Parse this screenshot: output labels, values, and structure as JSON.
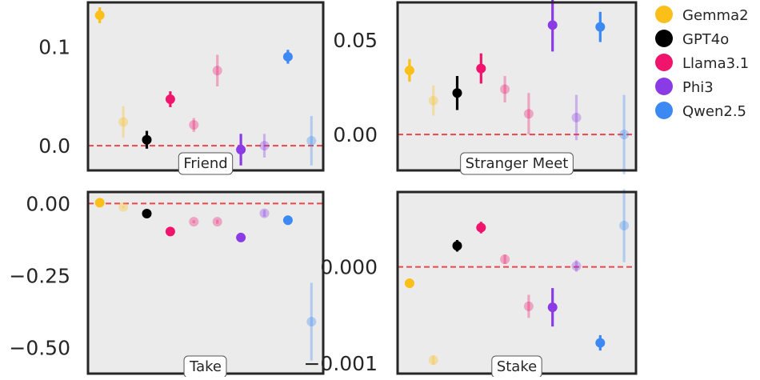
{
  "colors": {
    "background": "#ebebeb",
    "frame": "#262626",
    "zero_line": "#e8474c",
    "Gemma2": "#fbbf1a",
    "GPT4o": "#000000",
    "Llama3.1": "#f0146c",
    "Phi3": "#8b3be6",
    "Qwen2.5": "#3c89f3"
  },
  "legend": {
    "items": [
      {
        "label": "Gemma2",
        "color": "#fbbf1a"
      },
      {
        "label": "GPT4o",
        "color": "#000000"
      },
      {
        "label": "Llama3.1",
        "color": "#f0146c"
      },
      {
        "label": "Phi3",
        "color": "#8b3be6"
      },
      {
        "label": "Qwen2.5",
        "color": "#3c89f3"
      }
    ]
  },
  "chart_data": [
    {
      "type": "scatter",
      "title": "Friend",
      "ylim": [
        -0.025,
        0.145
      ],
      "yticks": [
        {
          "v": 0.0,
          "label": "0.0"
        },
        {
          "v": 0.1,
          "label": "0.1"
        }
      ],
      "reference_line": 0,
      "points": [
        {
          "model": "Gemma2",
          "y": 0.132,
          "err": 0.008,
          "faded": false
        },
        {
          "model": "Gemma2",
          "y": 0.024,
          "err": 0.016,
          "faded": true
        },
        {
          "model": "GPT4o",
          "y": 0.006,
          "err": 0.009,
          "faded": false
        },
        {
          "model": "Llama3.1",
          "y": 0.047,
          "err": 0.008,
          "faded": false
        },
        {
          "model": "Llama3.1",
          "y": 0.021,
          "err": 0.007,
          "faded": true
        },
        {
          "model": "Llama3.1",
          "y": 0.076,
          "err": 0.016,
          "faded": true
        },
        {
          "model": "Phi3",
          "y": -0.004,
          "err": 0.016,
          "faded": false
        },
        {
          "model": "Phi3",
          "y": 0.0,
          "err": 0.012,
          "faded": true
        },
        {
          "model": "Qwen2.5",
          "y": 0.09,
          "err": 0.007,
          "faded": false
        },
        {
          "model": "Qwen2.5",
          "y": 0.005,
          "err": 0.025,
          "faded": true
        }
      ]
    },
    {
      "type": "scatter",
      "title": "Stranger Meet",
      "ylim": [
        -0.019,
        0.07
      ],
      "yticks": [
        {
          "v": 0.0,
          "label": "0.00"
        },
        {
          "v": 0.05,
          "label": "0.05"
        }
      ],
      "reference_line": 0,
      "points": [
        {
          "model": "Gemma2",
          "y": 0.034,
          "err": 0.006,
          "faded": false
        },
        {
          "model": "Gemma2",
          "y": 0.018,
          "err": 0.008,
          "faded": true
        },
        {
          "model": "GPT4o",
          "y": 0.022,
          "err": 0.009,
          "faded": false
        },
        {
          "model": "Llama3.1",
          "y": 0.035,
          "err": 0.008,
          "faded": false
        },
        {
          "model": "Llama3.1",
          "y": 0.024,
          "err": 0.007,
          "faded": true
        },
        {
          "model": "Llama3.1",
          "y": 0.011,
          "err": 0.011,
          "faded": true
        },
        {
          "model": "Phi3",
          "y": 0.058,
          "err": 0.014,
          "faded": false
        },
        {
          "model": "Phi3",
          "y": 0.009,
          "err": 0.012,
          "faded": true
        },
        {
          "model": "Qwen2.5",
          "y": 0.057,
          "err": 0.008,
          "faded": false
        },
        {
          "model": "Qwen2.5",
          "y": 0.0,
          "err": 0.021,
          "faded": true
        }
      ]
    },
    {
      "type": "scatter",
      "title": "Take",
      "ylim": [
        -0.59,
        0.04
      ],
      "yticks": [
        {
          "v": 0.0,
          "label": "0.00"
        },
        {
          "v": -0.25,
          "label": "−0.25"
        },
        {
          "v": -0.5,
          "label": "−0.50"
        }
      ],
      "reference_line": 0,
      "points": [
        {
          "model": "Gemma2",
          "y": 0.003,
          "err": 0.004,
          "faded": false
        },
        {
          "model": "Gemma2",
          "y": -0.012,
          "err": 0.004,
          "faded": true
        },
        {
          "model": "GPT4o",
          "y": -0.035,
          "err": 0.004,
          "faded": false
        },
        {
          "model": "Llama3.1",
          "y": -0.097,
          "err": 0.004,
          "faded": false
        },
        {
          "model": "Llama3.1",
          "y": -0.063,
          "err": 0.005,
          "faded": true
        },
        {
          "model": "Llama3.1",
          "y": -0.063,
          "err": 0.007,
          "faded": true
        },
        {
          "model": "Phi3",
          "y": -0.118,
          "err": 0.004,
          "faded": false
        },
        {
          "model": "Phi3",
          "y": -0.034,
          "err": 0.012,
          "faded": true
        },
        {
          "model": "Qwen2.5",
          "y": -0.058,
          "err": 0.004,
          "faded": false
        },
        {
          "model": "Qwen2.5",
          "y": -0.41,
          "err": 0.135,
          "faded": true
        }
      ]
    },
    {
      "type": "scatter",
      "title": "Stake",
      "ylim": [
        -0.00111,
        0.00078
      ],
      "yticks": [
        {
          "v": 0.0,
          "label": "0.000"
        },
        {
          "v": -0.001,
          "label": "−0.001"
        }
      ],
      "reference_line": 0,
      "points": [
        {
          "model": "Gemma2",
          "y": -0.00017,
          "err": 5e-05,
          "faded": false
        },
        {
          "model": "Gemma2",
          "y": -0.00097,
          "err": 5e-05,
          "faded": true
        },
        {
          "model": "GPT4o",
          "y": 0.00022,
          "err": 6e-05,
          "faded": false
        },
        {
          "model": "Llama3.1",
          "y": 0.00041,
          "err": 6e-05,
          "faded": false
        },
        {
          "model": "Llama3.1",
          "y": 8e-05,
          "err": 5e-05,
          "faded": true
        },
        {
          "model": "Llama3.1",
          "y": -0.00041,
          "err": 0.00012,
          "faded": true
        },
        {
          "model": "Phi3",
          "y": -0.00042,
          "err": 0.0002,
          "faded": false
        },
        {
          "model": "Phi3",
          "y": 1e-05,
          "err": 6e-05,
          "faded": true
        },
        {
          "model": "Qwen2.5",
          "y": -0.00079,
          "err": 8e-05,
          "faded": false
        },
        {
          "model": "Qwen2.5",
          "y": 0.00043,
          "err": 0.00038,
          "faded": true
        }
      ]
    }
  ]
}
